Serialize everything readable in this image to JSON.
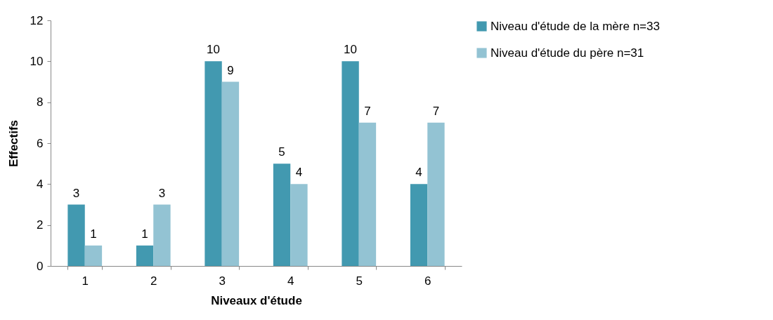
{
  "chart_data": {
    "type": "bar",
    "xlabel": "Niveaux d'étude",
    "ylabel": "Effectifs",
    "categories": [
      "1",
      "2",
      "3",
      "4",
      "5",
      "6"
    ],
    "series": [
      {
        "name": "Niveau d'étude de la mère n=33",
        "color": "#4299b0",
        "values": [
          3,
          1,
          10,
          5,
          10,
          4
        ]
      },
      {
        "name": "Niveau d'étude du père n=31",
        "color": "#93c3d3",
        "values": [
          1,
          3,
          9,
          4,
          7,
          7
        ]
      }
    ],
    "ylim": [
      0,
      12
    ],
    "yticks": [
      0,
      2,
      4,
      6,
      8,
      10,
      12
    ],
    "grid": false,
    "legend": "right",
    "data_labels": true
  }
}
